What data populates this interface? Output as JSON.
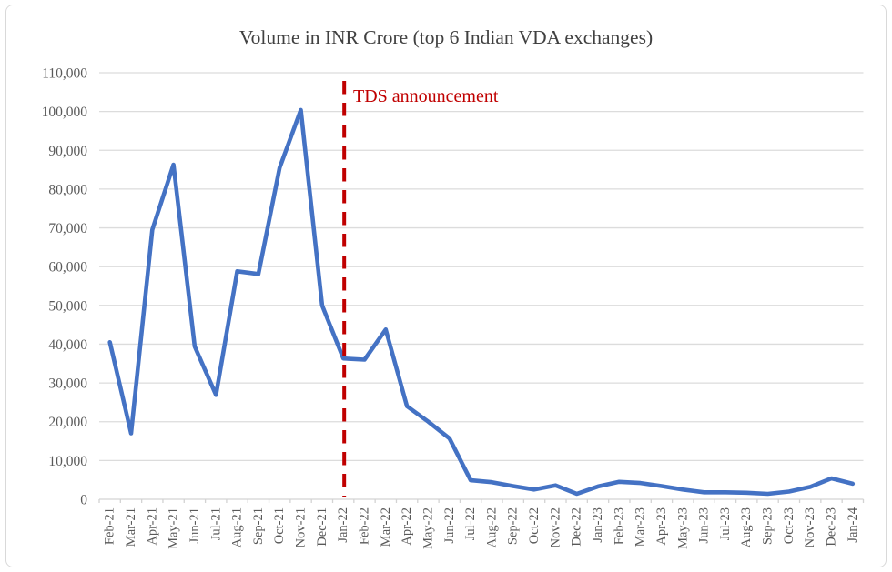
{
  "figure": {
    "background": "#ffffff",
    "border_color": "#d9d9d9"
  },
  "chart_data": {
    "type": "line",
    "title": "Volume in INR Crore (top 6 Indian VDA exchanges)",
    "xlabel": "",
    "ylabel": "",
    "categories": [
      "Feb-21",
      "Mar-21",
      "Apr-21",
      "May-21",
      "Jun-21",
      "Jul-21",
      "Aug-21",
      "Sep-21",
      "Oct-21",
      "Nov-21",
      "Dec-21",
      "Jan-22",
      "Feb-22",
      "Mar-22",
      "Apr-22",
      "May-22",
      "Jun-22",
      "Jul-22",
      "Aug-22",
      "Sep-22",
      "Oct-22",
      "Nov-22",
      "Dec-22",
      "Jan-23",
      "Feb-23",
      "Mar-23",
      "Apr-23",
      "May-23",
      "Jun-23",
      "Jul-23",
      "Aug-23",
      "Sep-23",
      "Oct-23",
      "Nov-23",
      "Dec-23",
      "Jan-24"
    ],
    "series": [
      {
        "name": "Volume in INR Crore",
        "color": "#4472c4",
        "values": [
          40500,
          17000,
          69500,
          86300,
          39400,
          26900,
          58800,
          58100,
          85500,
          100400,
          50000,
          36300,
          36000,
          43800,
          24000,
          20000,
          15700,
          4900,
          4400,
          3400,
          2500,
          3600,
          1400,
          3300,
          4500,
          4200,
          3400,
          2500,
          1800,
          1800,
          1700,
          1400,
          2000,
          3200,
          5400,
          4000
        ]
      }
    ],
    "ylim": [
      0,
      110000
    ],
    "y_tick_step": 10000,
    "y_tick_labels": [
      "0",
      "10,000",
      "20,000",
      "30,000",
      "40,000",
      "50,000",
      "60,000",
      "70,000",
      "80,000",
      "90,000",
      "100,000",
      "110,000"
    ],
    "grid": true,
    "legend": "none",
    "annotation": {
      "label": "TDS announcement",
      "category": "Jan-22",
      "color": "#c00000"
    },
    "colors": {
      "gridline": "#dcdcdc",
      "axis_line": "#d3d3d3",
      "tick_text": "#595959",
      "title_text": "#404040"
    }
  }
}
